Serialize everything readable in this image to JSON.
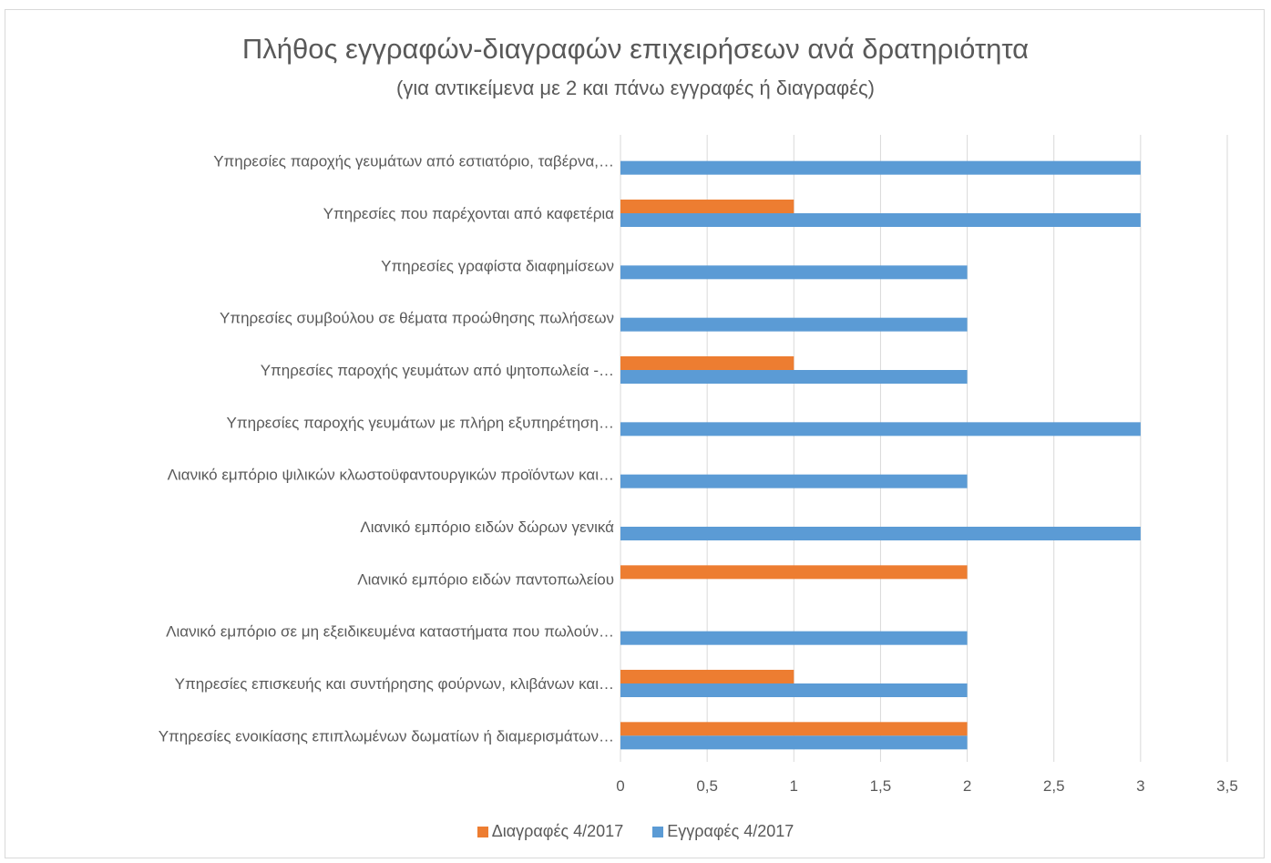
{
  "chart_data": {
    "type": "bar",
    "orientation": "horizontal",
    "title": "Πλήθος εγγραφών-διαγραφών επιχειρήσεων ανά δρατηριότητα",
    "subtitle": "(για αντικείμενα με 2 και πάνω εγγραφές ή διαγραφές)",
    "xlim": [
      0,
      3.5
    ],
    "xticks": [
      "0",
      "0,5",
      "1",
      "1,5",
      "2",
      "2,5",
      "3",
      "3,5"
    ],
    "grid": "vertical",
    "legend_position": "bottom",
    "categories": [
      "Υπηρεσίες παροχής γευμάτων από εστιατόριο, ταβέρνα,…",
      "Υπηρεσίες που παρέχονται από καφετέρια",
      "Υπηρεσίες γραφίστα διαφημίσεων",
      "Υπηρεσίες συμβούλου σε θέματα προώθησης πωλήσεων",
      "Υπηρεσίες παροχής γευμάτων από ψητοπωλεία -…",
      "Υπηρεσίες παροχής γευμάτων με πλήρη εξυπηρέτηση…",
      "Λιανικό εμπόριο ψιλικών κλωστοϋφαντουργικών προϊόντων και…",
      "Λιανικό εμπόριο ειδών δώρων γενικά",
      "Λιανικό εμπόριο ειδών παντοπωλείου",
      "Λιανικό εμπόριο σε μη εξειδικευμένα καταστήματα που πωλούν…",
      "Υπηρεσίες επισκευής και συντήρησης φούρνων, κλιβάνων και…",
      "Υπηρεσίες ενοικίασης επιπλωμένων δωματίων ή διαμερισμάτων…"
    ],
    "series": [
      {
        "name": "Διαγραφές 4/2017",
        "color": "#ED7D31",
        "values": [
          0,
          1,
          0,
          0,
          1,
          0,
          0,
          0,
          2,
          0,
          1,
          2
        ]
      },
      {
        "name": "Εγγραφές 4/2017",
        "color": "#5B9BD5",
        "values": [
          3,
          3,
          2,
          2,
          2,
          3,
          2,
          3,
          0,
          2,
          2,
          2
        ]
      }
    ]
  }
}
